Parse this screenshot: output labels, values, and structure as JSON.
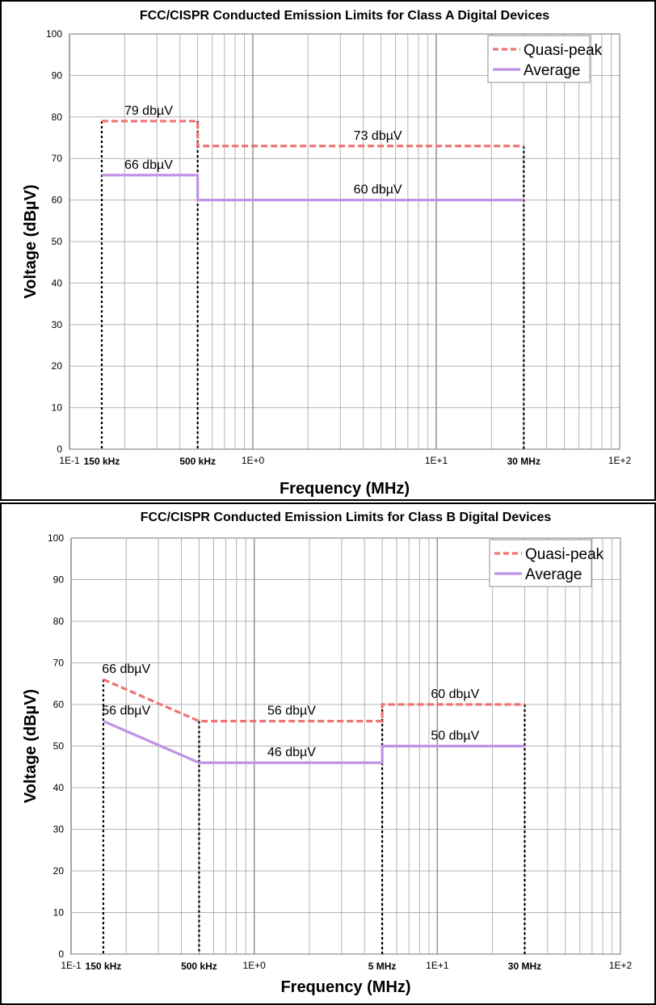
{
  "colors": {
    "quasi_peak": "#f07373",
    "average": "#bf94e4",
    "grid": "#b3b3b3",
    "grid_major": "#8c8c8c"
  },
  "chart_data": [
    {
      "type": "line",
      "title": "FCC/CISPR Conducted Emission Limits for Class A Digital Devices",
      "xlabel": "Frequency (MHz)",
      "ylabel": "Voltage (dBµV)",
      "x_scale": "log",
      "xlim": [
        0.1,
        100
      ],
      "ylim": [
        0,
        100
      ],
      "x_ticks": [
        "1E-1",
        "1E+0",
        "1E+1",
        "1E+2"
      ],
      "y_ticks": [
        "0",
        "10",
        "20",
        "30",
        "40",
        "50",
        "60",
        "70",
        "80",
        "90",
        "100"
      ],
      "grid": true,
      "legend_position": "top-right",
      "series": [
        {
          "name": "Quasi-peak",
          "style": "dashed",
          "x": [
            0.15,
            0.5,
            0.5,
            30
          ],
          "y": [
            79,
            79,
            73,
            73
          ]
        },
        {
          "name": "Average",
          "style": "solid",
          "x": [
            0.15,
            0.5,
            0.5,
            30
          ],
          "y": [
            66,
            66,
            60,
            60
          ]
        }
      ],
      "markers": [
        {
          "x": 0.15,
          "top": 79,
          "label": "150 kHz"
        },
        {
          "x": 0.5,
          "top": 79,
          "label": "500 kHz"
        },
        {
          "x": 30,
          "top": 73,
          "label": "30 MHz"
        }
      ],
      "annotations": [
        {
          "text": "79 dbµV",
          "x": 0.27,
          "y": 79
        },
        {
          "text": "73 dbµV",
          "x": 4.8,
          "y": 73
        },
        {
          "text": "66 dbµV",
          "x": 0.27,
          "y": 66
        },
        {
          "text": "60 dbµV",
          "x": 4.8,
          "y": 60
        }
      ]
    },
    {
      "type": "line",
      "title": "FCC/CISPR Conducted Emission Limits for Class B Digital Devices",
      "xlabel": "Frequency (MHz)",
      "ylabel": "Voltage (dBµV)",
      "x_scale": "log",
      "xlim": [
        0.1,
        100
      ],
      "ylim": [
        0,
        100
      ],
      "x_ticks": [
        "1E-1",
        "1E+0",
        "1E+1",
        "1E+2"
      ],
      "y_ticks": [
        "0",
        "10",
        "20",
        "30",
        "40",
        "50",
        "60",
        "70",
        "80",
        "90",
        "100"
      ],
      "grid": true,
      "legend_position": "top-right",
      "series": [
        {
          "name": "Quasi-peak",
          "style": "dashed",
          "x": [
            0.15,
            0.5,
            5,
            5,
            30
          ],
          "y": [
            66,
            56,
            56,
            60,
            60
          ]
        },
        {
          "name": "Average",
          "style": "solid",
          "x": [
            0.15,
            0.5,
            5,
            5,
            30
          ],
          "y": [
            56,
            46,
            46,
            50,
            50
          ]
        }
      ],
      "markers": [
        {
          "x": 0.15,
          "top": 66,
          "label": "150 kHz"
        },
        {
          "x": 0.5,
          "top": 56,
          "label": "500 kHz"
        },
        {
          "x": 5,
          "top": 60,
          "label": "5 MHz"
        },
        {
          "x": 30,
          "top": 60,
          "label": "30 MHz"
        }
      ],
      "annotations": [
        {
          "text": "66 dbµV",
          "x": 0.2,
          "y": 66
        },
        {
          "text": "56 dbµV",
          "x": 0.2,
          "y": 56
        },
        {
          "text": "56 dbµV",
          "x": 1.6,
          "y": 56
        },
        {
          "text": "46 dbµV",
          "x": 1.6,
          "y": 46
        },
        {
          "text": "60 dbµV",
          "x": 12.5,
          "y": 60
        },
        {
          "text": "50 dbµV",
          "x": 12.5,
          "y": 50
        }
      ]
    }
  ]
}
